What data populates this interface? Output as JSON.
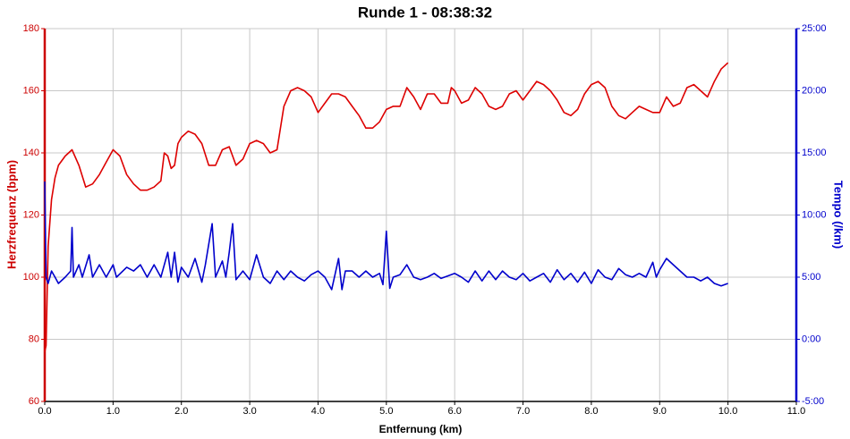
{
  "chart_data": {
    "type": "line",
    "title": "Runde 1 - 08:38:32",
    "x_label": "Entfernung (km)",
    "y_label": "Herzfrequenz (bpm)",
    "y2_label": "Tempo (/km)",
    "xlim": [
      0,
      11
    ],
    "xticks": [
      {
        "value": 0,
        "label": "0.0"
      },
      {
        "value": 1,
        "label": "1.0"
      },
      {
        "value": 2,
        "label": "2.0"
      },
      {
        "value": 3,
        "label": "3.0"
      },
      {
        "value": 4,
        "label": "4.0"
      },
      {
        "value": 5,
        "label": "5.0"
      },
      {
        "value": 6,
        "label": "6.0"
      },
      {
        "value": 7,
        "label": "7.0"
      },
      {
        "value": 8,
        "label": "8.0"
      },
      {
        "value": 9,
        "label": "9.0"
      },
      {
        "value": 10,
        "label": "10.0"
      },
      {
        "value": 11,
        "label": "11.0"
      }
    ],
    "ylim": [
      60,
      180
    ],
    "yticks": [
      60,
      80,
      100,
      120,
      140,
      160,
      180
    ],
    "y2lim": [
      -5,
      25
    ],
    "y2ticks": [
      {
        "value": -5,
        "label": "-5:00"
      },
      {
        "value": 0,
        "label": "0:00"
      },
      {
        "value": 5,
        "label": "5:00"
      },
      {
        "value": 10,
        "label": "10:00"
      },
      {
        "value": 15,
        "label": "15:00"
      },
      {
        "value": 20,
        "label": "20:00"
      },
      {
        "value": 25,
        "label": "25:00"
      }
    ],
    "grid": true,
    "series": [
      {
        "name": "Herzfrequenz",
        "color": "#dd0000",
        "axis": "y",
        "x": [
          0,
          0.02,
          0.05,
          0.1,
          0.15,
          0.2,
          0.3,
          0.4,
          0.5,
          0.6,
          0.7,
          0.8,
          0.9,
          1.0,
          1.1,
          1.2,
          1.3,
          1.4,
          1.5,
          1.6,
          1.7,
          1.75,
          1.8,
          1.85,
          1.9,
          1.95,
          2.0,
          2.1,
          2.2,
          2.3,
          2.4,
          2.5,
          2.6,
          2.7,
          2.8,
          2.9,
          3.0,
          3.1,
          3.2,
          3.3,
          3.4,
          3.5,
          3.6,
          3.7,
          3.8,
          3.9,
          4.0,
          4.1,
          4.2,
          4.3,
          4.4,
          4.5,
          4.6,
          4.7,
          4.8,
          4.9,
          5.0,
          5.1,
          5.2,
          5.3,
          5.4,
          5.5,
          5.6,
          5.7,
          5.8,
          5.9,
          5.95,
          6.0,
          6.1,
          6.2,
          6.3,
          6.4,
          6.5,
          6.6,
          6.7,
          6.8,
          6.9,
          7.0,
          7.1,
          7.2,
          7.3,
          7.4,
          7.5,
          7.6,
          7.7,
          7.8,
          7.9,
          8.0,
          8.1,
          8.2,
          8.3,
          8.4,
          8.5,
          8.6,
          8.7,
          8.8,
          8.9,
          9.0,
          9.1,
          9.2,
          9.3,
          9.4,
          9.5,
          9.6,
          9.7,
          9.8,
          9.9,
          10.0
        ],
        "values": [
          76,
          78,
          110,
          125,
          132,
          136,
          139,
          141,
          136,
          129,
          130,
          133,
          137,
          141,
          139,
          133,
          130,
          128,
          128,
          129,
          131,
          140,
          139,
          135,
          136,
          143,
          145,
          147,
          146,
          143,
          136,
          136,
          141,
          142,
          136,
          138,
          143,
          144,
          143,
          140,
          141,
          155,
          160,
          161,
          160,
          158,
          153,
          156,
          159,
          159,
          158,
          155,
          152,
          148,
          148,
          150,
          154,
          155,
          155,
          161,
          158,
          154,
          159,
          159,
          156,
          156,
          161,
          160,
          156,
          157,
          161,
          159,
          155,
          154,
          155,
          159,
          160,
          157,
          160,
          163,
          162,
          160,
          157,
          153,
          152,
          154,
          159,
          162,
          163,
          161,
          155,
          152,
          151,
          153,
          155,
          154,
          153,
          153,
          158,
          155,
          156,
          161,
          162,
          160,
          158,
          163,
          167,
          169
        ]
      },
      {
        "name": "Tempo",
        "color": "#0000cc",
        "axis": "y2",
        "x": [
          0,
          0.02,
          0.05,
          0.1,
          0.15,
          0.2,
          0.3,
          0.38,
          0.4,
          0.42,
          0.5,
          0.55,
          0.65,
          0.7,
          0.8,
          0.9,
          1.0,
          1.05,
          1.2,
          1.3,
          1.4,
          1.5,
          1.6,
          1.7,
          1.8,
          1.85,
          1.9,
          1.95,
          2.0,
          2.1,
          2.2,
          2.3,
          2.35,
          2.45,
          2.5,
          2.6,
          2.65,
          2.7,
          2.75,
          2.8,
          2.9,
          3.0,
          3.1,
          3.2,
          3.3,
          3.4,
          3.5,
          3.6,
          3.7,
          3.8,
          3.9,
          4.0,
          4.1,
          4.2,
          4.3,
          4.35,
          4.4,
          4.5,
          4.6,
          4.7,
          4.8,
          4.9,
          4.95,
          5.0,
          5.05,
          5.1,
          5.2,
          5.3,
          5.4,
          5.5,
          5.6,
          5.7,
          5.8,
          5.9,
          6.0,
          6.1,
          6.2,
          6.3,
          6.4,
          6.5,
          6.6,
          6.7,
          6.8,
          6.9,
          7.0,
          7.1,
          7.2,
          7.3,
          7.4,
          7.5,
          7.6,
          7.7,
          7.8,
          7.9,
          8.0,
          8.1,
          8.2,
          8.3,
          8.4,
          8.5,
          8.6,
          8.7,
          8.8,
          8.9,
          8.95,
          9.0,
          9.1,
          9.2,
          9.3,
          9.4,
          9.5,
          9.6,
          9.7,
          9.8,
          9.9,
          10.0
        ],
        "values": [
          12.7,
          5,
          4.5,
          5.5,
          5,
          4.5,
          5,
          5.5,
          9,
          5,
          6,
          5,
          6.8,
          5,
          6,
          5,
          6,
          5,
          5.8,
          5.5,
          6,
          5,
          6,
          5,
          7,
          5,
          7,
          4.6,
          5.8,
          5,
          6.5,
          4.6,
          6,
          9.3,
          5,
          6.3,
          5,
          7,
          9.3,
          4.8,
          5.5,
          4.8,
          6.8,
          5,
          4.5,
          5.5,
          4.8,
          5.5,
          5,
          4.7,
          5.2,
          5.5,
          5,
          4,
          6.5,
          4,
          5.5,
          5.5,
          5,
          5.5,
          5,
          5.3,
          4.4,
          8.7,
          4.1,
          5,
          5.2,
          6,
          5,
          4.8,
          5,
          5.3,
          4.9,
          5.1,
          5.3,
          5,
          4.6,
          5.5,
          4.7,
          5.5,
          4.8,
          5.5,
          5,
          4.8,
          5.3,
          4.7,
          5,
          5.3,
          4.6,
          5.6,
          4.8,
          5.3,
          4.6,
          5.4,
          4.5,
          5.6,
          5,
          4.8,
          5.7,
          5.2,
          5,
          5.3,
          5,
          6.2,
          5,
          5.6,
          6.5,
          6,
          5.5,
          5,
          5,
          4.7,
          5,
          4.5,
          4.3,
          4.5
        ]
      }
    ]
  }
}
